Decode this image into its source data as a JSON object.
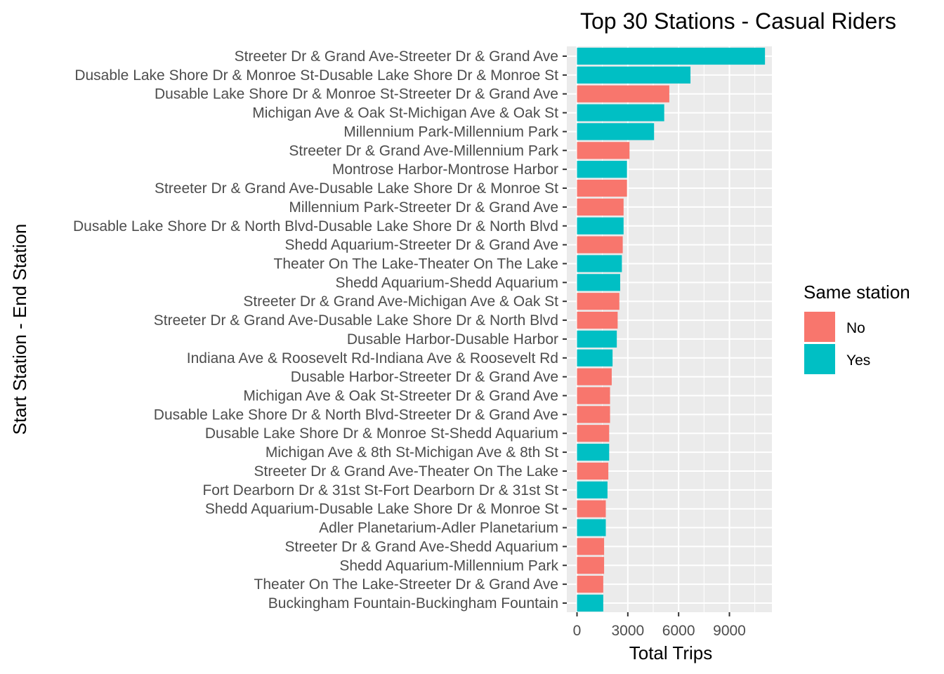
{
  "chart_data": {
    "type": "bar",
    "orientation": "horizontal",
    "title": "Top 30 Stations - Casual Riders",
    "xlabel": "Total Trips",
    "ylabel": "Start Station - End Station",
    "xlim": [
      0,
      11500
    ],
    "xticks": [
      0,
      3000,
      6000,
      9000
    ],
    "grid": true,
    "legend": {
      "title": "Same station",
      "placement": "right",
      "entries": [
        {
          "label": "No",
          "color": "#F8766D"
        },
        {
          "label": "Yes",
          "color": "#00BFC4"
        }
      ]
    },
    "bars": [
      {
        "label": "Streeter Dr & Grand Ave-Streeter Dr & Grand Ave",
        "value": 11100,
        "same_station": "Yes"
      },
      {
        "label": "Dusable Lake Shore Dr & Monroe St-Dusable Lake Shore Dr & Monroe St",
        "value": 6700,
        "same_station": "Yes"
      },
      {
        "label": "Dusable Lake Shore Dr & Monroe St-Streeter Dr & Grand Ave",
        "value": 5450,
        "same_station": "No"
      },
      {
        "label": "Michigan Ave & Oak St-Michigan Ave & Oak St",
        "value": 5150,
        "same_station": "Yes"
      },
      {
        "label": "Millennium Park-Millennium Park",
        "value": 4550,
        "same_station": "Yes"
      },
      {
        "label": "Streeter Dr & Grand Ave-Millennium Park",
        "value": 3100,
        "same_station": "No"
      },
      {
        "label": "Montrose Harbor-Montrose Harbor",
        "value": 2950,
        "same_station": "Yes"
      },
      {
        "label": "Streeter Dr & Grand Ave-Dusable Lake Shore Dr & Monroe St",
        "value": 2950,
        "same_station": "No"
      },
      {
        "label": "Millennium Park-Streeter Dr & Grand Ave",
        "value": 2750,
        "same_station": "No"
      },
      {
        "label": "Dusable Lake Shore Dr & North Blvd-Dusable Lake Shore Dr & North Blvd",
        "value": 2750,
        "same_station": "Yes"
      },
      {
        "label": "Shedd Aquarium-Streeter Dr & Grand Ave",
        "value": 2700,
        "same_station": "No"
      },
      {
        "label": "Theater On The Lake-Theater On The Lake",
        "value": 2650,
        "same_station": "Yes"
      },
      {
        "label": "Shedd Aquarium-Shedd Aquarium",
        "value": 2550,
        "same_station": "Yes"
      },
      {
        "label": "Streeter Dr & Grand Ave-Michigan Ave & Oak St",
        "value": 2500,
        "same_station": "No"
      },
      {
        "label": "Streeter Dr & Grand Ave-Dusable Lake Shore Dr & North Blvd",
        "value": 2400,
        "same_station": "No"
      },
      {
        "label": "Dusable Harbor-Dusable Harbor",
        "value": 2350,
        "same_station": "Yes"
      },
      {
        "label": "Indiana Ave & Roosevelt Rd-Indiana Ave & Roosevelt Rd",
        "value": 2100,
        "same_station": "Yes"
      },
      {
        "label": "Dusable Harbor-Streeter Dr & Grand Ave",
        "value": 2050,
        "same_station": "No"
      },
      {
        "label": "Michigan Ave & Oak St-Streeter Dr & Grand Ave",
        "value": 1950,
        "same_station": "No"
      },
      {
        "label": "Dusable Lake Shore Dr & North Blvd-Streeter Dr & Grand Ave",
        "value": 1950,
        "same_station": "No"
      },
      {
        "label": "Dusable Lake Shore Dr & Monroe St-Shedd Aquarium",
        "value": 1900,
        "same_station": "No"
      },
      {
        "label": "Michigan Ave & 8th St-Michigan Ave & 8th St",
        "value": 1900,
        "same_station": "Yes"
      },
      {
        "label": "Streeter Dr & Grand Ave-Theater On The Lake",
        "value": 1850,
        "same_station": "No"
      },
      {
        "label": "Fort Dearborn Dr & 31st St-Fort Dearborn Dr & 31st St",
        "value": 1800,
        "same_station": "Yes"
      },
      {
        "label": "Shedd Aquarium-Dusable Lake Shore Dr & Monroe St",
        "value": 1700,
        "same_station": "No"
      },
      {
        "label": "Adler Planetarium-Adler Planetarium",
        "value": 1700,
        "same_station": "Yes"
      },
      {
        "label": "Streeter Dr & Grand Ave-Shedd Aquarium",
        "value": 1600,
        "same_station": "No"
      },
      {
        "label": "Shedd Aquarium-Millennium Park",
        "value": 1600,
        "same_station": "No"
      },
      {
        "label": "Theater On The Lake-Streeter Dr & Grand Ave",
        "value": 1550,
        "same_station": "No"
      },
      {
        "label": "Buckingham Fountain-Buckingham Fountain",
        "value": 1550,
        "same_station": "Yes"
      }
    ]
  }
}
